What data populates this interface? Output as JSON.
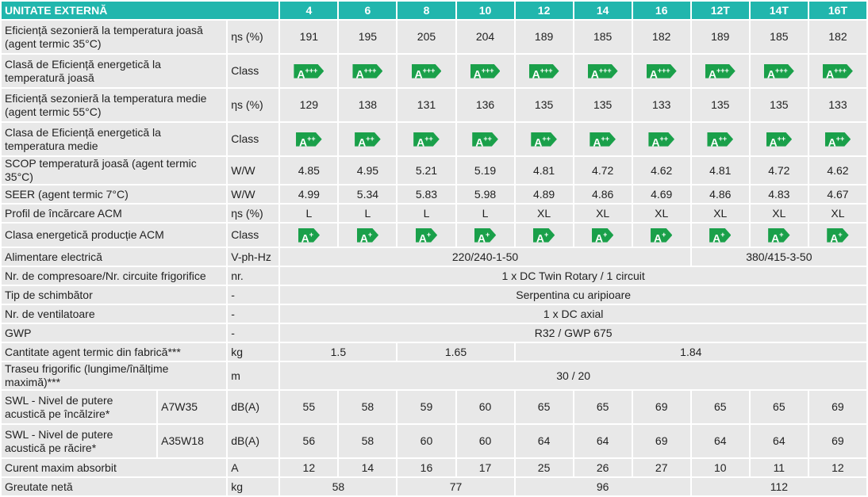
{
  "header": {
    "title": "UNITATE EXTERNĂ",
    "models": [
      "4",
      "6",
      "8",
      "10",
      "12",
      "14",
      "16",
      "12T",
      "14T",
      "16T"
    ]
  },
  "rows": {
    "eff_low": {
      "label": "Eficiență sezonieră la temperatura joasă (agent termic 35°C)",
      "unit": "ηs (%)",
      "values": [
        "191",
        "195",
        "205",
        "204",
        "189",
        "185",
        "182",
        "189",
        "185",
        "182"
      ]
    },
    "class_low": {
      "label": "Clasă de Eficiență energetică la temperatură joasă",
      "unit": "Class",
      "badge_base": "A",
      "badge_sup": "+++",
      "badge_color": "#1aa04a"
    },
    "eff_med": {
      "label": "Eficiență sezonieră la temperatura medie (agent termic 55°C)",
      "unit": "ηs (%)",
      "values": [
        "129",
        "138",
        "131",
        "136",
        "135",
        "135",
        "133",
        "135",
        "135",
        "133"
      ]
    },
    "class_med": {
      "label": "Clasa de Eficiență energetică la temperatura medie",
      "unit": "Class",
      "badge_base": "A",
      "badge_sup": "++",
      "badge_color": "#1aa04a"
    },
    "scop": {
      "label": "SCOP temperatură joasă (agent termic 35°C)",
      "unit": "W/W",
      "values": [
        "4.85",
        "4.95",
        "5.21",
        "5.19",
        "4.81",
        "4.72",
        "4.62",
        "4.81",
        "4.72",
        "4.62"
      ]
    },
    "seer": {
      "label": "SEER (agent termic 7°C)",
      "unit": "W/W",
      "values": [
        "4.99",
        "5.34",
        "5.83",
        "5.98",
        "4.89",
        "4.86",
        "4.69",
        "4.86",
        "4.83",
        "4.67"
      ]
    },
    "acm_profile": {
      "label": "Profil de încărcare ACM",
      "unit": "ηs (%)",
      "values": [
        "L",
        "L",
        "L",
        "L",
        "XL",
        "XL",
        "XL",
        "XL",
        "XL",
        "XL"
      ]
    },
    "acm_class": {
      "label": "Clasa energetică producție ACM",
      "unit": "Class",
      "badge_base": "A",
      "badge_sup": "+",
      "badge_color": "#1aa04a"
    },
    "power": {
      "label": "Alimentare electrică",
      "unit": "V-ph-Hz",
      "value_single": "220/240-1-50",
      "value_three": "380/415-3-50"
    },
    "compressor": {
      "label": "Nr. de compresoare/Nr. circuite frigorifice",
      "unit": "nr.",
      "value": "1 x DC Twin Rotary / 1 circuit"
    },
    "exchanger": {
      "label": "Tip de schimbător",
      "unit": "-",
      "value": "Serpentina cu aripioare"
    },
    "fans": {
      "label": "Nr. de ventilatoare",
      "unit": "-",
      "value": "1 x DC axial"
    },
    "gwp": {
      "label": "GWP",
      "unit": "-",
      "value": "R32 / GWP 675"
    },
    "charge": {
      "label": "Cantitate agent termic din fabrică***",
      "unit": "kg",
      "values": [
        "1.5",
        "1.65",
        "1.84"
      ]
    },
    "piping": {
      "label": "Traseu frigorific (lungime/înălțime maximă)***",
      "unit": "m",
      "value": "30 / 20"
    },
    "swl_heat": {
      "label": "SWL - Nivel de putere acustică pe încălzire*",
      "condition": "A7W35",
      "unit": "dB(A)",
      "values": [
        "55",
        "58",
        "59",
        "60",
        "65",
        "65",
        "69",
        "65",
        "65",
        "69"
      ]
    },
    "swl_cool": {
      "label": "SWL - Nivel de putere acustică pe răcire*",
      "condition": "A35W18",
      "unit": "dB(A)",
      "values": [
        "56",
        "58",
        "60",
        "60",
        "64",
        "64",
        "69",
        "64",
        "64",
        "69"
      ]
    },
    "current": {
      "label": "Curent maxim absorbit",
      "unit": "A",
      "values": [
        "12",
        "14",
        "16",
        "17",
        "25",
        "26",
        "27",
        "10",
        "11",
        "12"
      ]
    },
    "weight": {
      "label": "Greutate netă",
      "unit": "kg",
      "values": [
        "58",
        "77",
        "96",
        "112"
      ]
    }
  }
}
